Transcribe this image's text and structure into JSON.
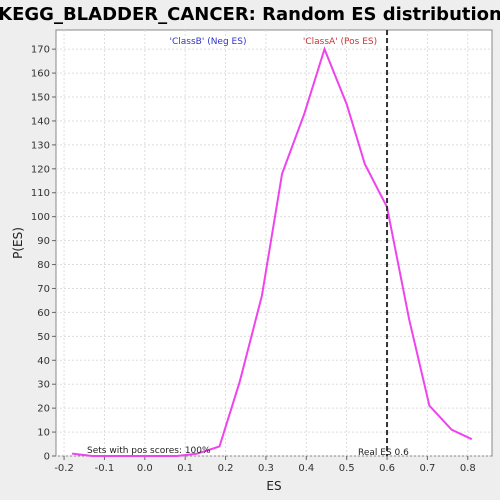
{
  "chart_data": {
    "type": "line",
    "title": "KEGG_BLADDER_CANCER: Random ES distribution",
    "xlabel": "ES",
    "ylabel": "P(ES)",
    "xlim": [
      -0.22,
      0.86
    ],
    "ylim": [
      0,
      178
    ],
    "x_ticks": [
      -0.2,
      -0.1,
      0.0,
      0.1,
      0.2,
      0.3,
      0.4,
      0.5,
      0.6,
      0.7,
      0.8
    ],
    "y_ticks": [
      0,
      10,
      20,
      30,
      40,
      50,
      60,
      70,
      80,
      90,
      100,
      110,
      120,
      130,
      140,
      150,
      160,
      170
    ],
    "grid": true,
    "series": [
      {
        "color": "#ee44ee",
        "x": [
          -0.18,
          -0.13,
          -0.08,
          -0.03,
          0.03,
          0.08,
          0.13,
          0.185,
          0.235,
          0.29,
          0.34,
          0.395,
          0.445,
          0.5,
          0.545,
          0.6,
          0.655,
          0.705,
          0.76,
          0.81
        ],
        "y": [
          1,
          0,
          0,
          0,
          0,
          0,
          1,
          4,
          31,
          67,
          118,
          143,
          170,
          147,
          122,
          104,
          57,
          21,
          11,
          7
        ]
      }
    ],
    "real_es": 0.6,
    "annotations": {
      "neg_label": "'ClassB' (Neg ES)",
      "pos_label": "'ClassA' (Pos ES)",
      "pos_scores": "Sets with pos scores: 100%",
      "real_es_label": "Real ES 0.6"
    },
    "colors": {
      "neg": "#3333cc",
      "pos": "#cc3333",
      "line": "#ee44ee",
      "real_es_line": "#333333"
    }
  }
}
